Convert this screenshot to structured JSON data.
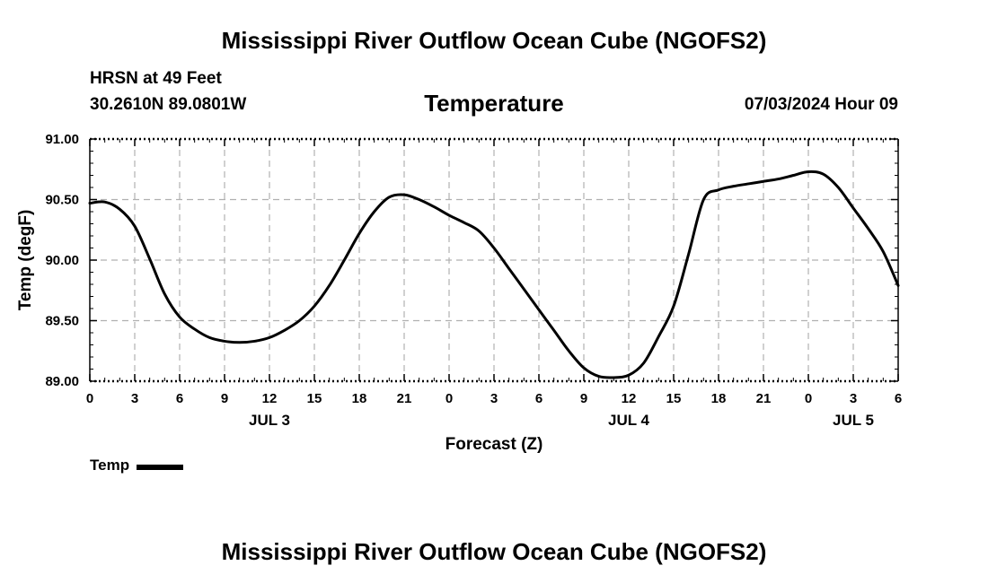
{
  "title": "Mississippi River Outflow Ocean Cube (NGOFS2)",
  "footer_title": "Mississippi River Outflow Ocean Cube (NGOFS2)",
  "station": "HRSN at 49 Feet",
  "coords": "30.2610N  89.0801W",
  "subtitle": "Temperature",
  "datetime": "07/03/2024 Hour 09",
  "legend": {
    "label": "Temp",
    "color": "#000000"
  },
  "chart_data": {
    "type": "line",
    "title": "Temperature",
    "xlabel": "Forecast (Z)",
    "ylabel": "Temp (degF)",
    "ylim": [
      89.0,
      91.0
    ],
    "xlim_hours": [
      0,
      54
    ],
    "yticks": [
      "89.00",
      "89.50",
      "90.00",
      "90.50",
      "91.00"
    ],
    "ytick_values": [
      89.0,
      89.5,
      90.0,
      90.5,
      91.0
    ],
    "xtick_labels": [
      "0",
      "3",
      "6",
      "9",
      "12",
      "15",
      "18",
      "21",
      "0",
      "3",
      "6",
      "9",
      "12",
      "15",
      "18",
      "21",
      "0",
      "3",
      "6"
    ],
    "date_labels": [
      {
        "label": "JUL 3",
        "hour": 12
      },
      {
        "label": "JUL 4",
        "hour": 36
      },
      {
        "label": "JUL 5",
        "hour": 51
      }
    ],
    "grid": true,
    "series": [
      {
        "name": "Temp",
        "color": "#000000",
        "x": [
          0,
          1,
          2,
          3,
          4,
          5,
          6,
          7,
          8,
          9,
          10,
          11,
          12,
          13,
          14,
          15,
          16,
          17,
          18,
          19,
          20,
          21,
          22,
          23,
          24,
          25,
          26,
          27,
          28,
          29,
          30,
          31,
          32,
          33,
          34,
          35,
          36,
          37,
          38,
          39,
          40,
          41,
          42,
          43,
          44,
          45,
          46,
          47,
          48,
          49,
          50,
          51,
          52,
          53,
          54
        ],
        "values": [
          90.47,
          90.48,
          90.42,
          90.28,
          90.01,
          89.72,
          89.53,
          89.43,
          89.36,
          89.33,
          89.32,
          89.33,
          89.36,
          89.42,
          89.5,
          89.62,
          89.79,
          90.0,
          90.22,
          90.4,
          90.52,
          90.54,
          90.5,
          90.44,
          90.37,
          90.31,
          90.24,
          90.1,
          89.93,
          89.76,
          89.59,
          89.42,
          89.25,
          89.11,
          89.04,
          89.03,
          89.05,
          89.15,
          89.37,
          89.62,
          90.05,
          90.5,
          90.58,
          90.61,
          90.63,
          90.65,
          90.67,
          90.7,
          90.73,
          90.71,
          90.6,
          90.43,
          90.26,
          90.07,
          89.79
        ]
      }
    ]
  }
}
